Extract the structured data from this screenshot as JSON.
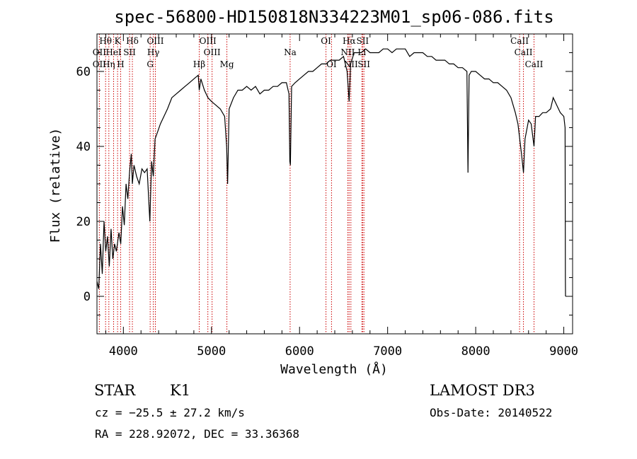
{
  "chart_data": {
    "type": "line",
    "title": "spec-56800-HD150818N334223M01_sp06-086.fits",
    "xlabel": "Wavelength (Å)",
    "ylabel": "Flux (relative)",
    "xlim": [
      3700,
      9100
    ],
    "ylim": [
      -10,
      70
    ],
    "xticks": [
      4000,
      5000,
      6000,
      7000,
      8000,
      9000
    ],
    "yticks": [
      0,
      20,
      40,
      60
    ],
    "grid": false,
    "series": [
      {
        "points": [
          [
            3700,
            4
          ],
          [
            3720,
            2
          ],
          [
            3740,
            14
          ],
          [
            3760,
            6
          ],
          [
            3780,
            20
          ],
          [
            3800,
            12
          ],
          [
            3820,
            16
          ],
          [
            3840,
            8
          ],
          [
            3860,
            18
          ],
          [
            3880,
            10
          ],
          [
            3900,
            14
          ],
          [
            3920,
            12
          ],
          [
            3950,
            17
          ],
          [
            3970,
            14
          ],
          [
            3990,
            24
          ],
          [
            4010,
            19
          ],
          [
            4030,
            30
          ],
          [
            4050,
            26
          ],
          [
            4070,
            33
          ],
          [
            4090,
            38
          ],
          [
            4102,
            30
          ],
          [
            4120,
            35
          ],
          [
            4150,
            32
          ],
          [
            4180,
            30
          ],
          [
            4210,
            34
          ],
          [
            4240,
            33
          ],
          [
            4270,
            34
          ],
          [
            4300,
            20
          ],
          [
            4320,
            36
          ],
          [
            4340,
            32
          ],
          [
            4360,
            42
          ],
          [
            4390,
            44
          ],
          [
            4420,
            46
          ],
          [
            4460,
            48
          ],
          [
            4500,
            50
          ],
          [
            4550,
            53
          ],
          [
            4600,
            54
          ],
          [
            4650,
            55
          ],
          [
            4700,
            56
          ],
          [
            4750,
            57
          ],
          [
            4800,
            58
          ],
          [
            4850,
            59
          ],
          [
            4861,
            55
          ],
          [
            4880,
            58
          ],
          [
            4920,
            55
          ],
          [
            4960,
            53
          ],
          [
            5000,
            52
          ],
          [
            5050,
            51
          ],
          [
            5100,
            50
          ],
          [
            5150,
            48
          ],
          [
            5172,
            40
          ],
          [
            5183,
            30
          ],
          [
            5200,
            50
          ],
          [
            5250,
            53
          ],
          [
            5300,
            55
          ],
          [
            5350,
            55
          ],
          [
            5400,
            56
          ],
          [
            5450,
            55
          ],
          [
            5500,
            56
          ],
          [
            5550,
            54
          ],
          [
            5600,
            55
          ],
          [
            5650,
            55
          ],
          [
            5700,
            56
          ],
          [
            5750,
            56
          ],
          [
            5800,
            57
          ],
          [
            5850,
            57
          ],
          [
            5880,
            54
          ],
          [
            5890,
            36
          ],
          [
            5896,
            35
          ],
          [
            5910,
            56
          ],
          [
            5950,
            57
          ],
          [
            6000,
            58
          ],
          [
            6050,
            59
          ],
          [
            6100,
            60
          ],
          [
            6150,
            60
          ],
          [
            6200,
            61
          ],
          [
            6250,
            62
          ],
          [
            6300,
            62
          ],
          [
            6350,
            63
          ],
          [
            6400,
            63
          ],
          [
            6450,
            63
          ],
          [
            6500,
            64
          ],
          [
            6540,
            60
          ],
          [
            6563,
            52
          ],
          [
            6580,
            62
          ],
          [
            6620,
            65
          ],
          [
            6650,
            65
          ],
          [
            6700,
            65
          ],
          [
            6750,
            66
          ],
          [
            6800,
            65
          ],
          [
            6850,
            65
          ],
          [
            6900,
            65
          ],
          [
            6950,
            66
          ],
          [
            7000,
            66
          ],
          [
            7050,
            65
          ],
          [
            7100,
            66
          ],
          [
            7150,
            66
          ],
          [
            7200,
            66
          ],
          [
            7250,
            64
          ],
          [
            7300,
            65
          ],
          [
            7350,
            65
          ],
          [
            7400,
            65
          ],
          [
            7450,
            64
          ],
          [
            7500,
            64
          ],
          [
            7550,
            63
          ],
          [
            7600,
            63
          ],
          [
            7650,
            63
          ],
          [
            7700,
            62
          ],
          [
            7750,
            62
          ],
          [
            7800,
            61
          ],
          [
            7850,
            61
          ],
          [
            7900,
            60
          ],
          [
            7912,
            33
          ],
          [
            7925,
            59
          ],
          [
            7950,
            60
          ],
          [
            8000,
            60
          ],
          [
            8050,
            59
          ],
          [
            8100,
            58
          ],
          [
            8150,
            58
          ],
          [
            8200,
            57
          ],
          [
            8250,
            57
          ],
          [
            8300,
            56
          ],
          [
            8350,
            55
          ],
          [
            8400,
            53
          ],
          [
            8450,
            49
          ],
          [
            8480,
            46
          ],
          [
            8500,
            42
          ],
          [
            8520,
            38
          ],
          [
            8542,
            33
          ],
          [
            8560,
            42
          ],
          [
            8600,
            47
          ],
          [
            8630,
            46
          ],
          [
            8662,
            40
          ],
          [
            8680,
            48
          ],
          [
            8720,
            48
          ],
          [
            8760,
            49
          ],
          [
            8800,
            49
          ],
          [
            8850,
            50
          ],
          [
            8880,
            53
          ],
          [
            8920,
            51
          ],
          [
            8960,
            49
          ],
          [
            9000,
            48
          ],
          [
            9015,
            45
          ],
          [
            9018,
            5
          ],
          [
            9020,
            0
          ]
        ]
      }
    ],
    "annotations": [
      {
        "label": "Hθ",
        "x": 3798,
        "row": 1
      },
      {
        "label": "K",
        "x": 3934,
        "row": 1
      },
      {
        "label": "Hδ",
        "x": 4102,
        "row": 1
      },
      {
        "label": "OII",
        "x": 3727,
        "row": 2
      },
      {
        "label": "HeI",
        "x": 3889,
        "row": 2
      },
      {
        "label": "SII",
        "x": 4070,
        "row": 2
      },
      {
        "label": "OII",
        "x": 3727,
        "row": 3
      },
      {
        "label": "Hη",
        "x": 3835,
        "row": 3
      },
      {
        "label": "H",
        "x": 3969,
        "row": 3
      },
      {
        "label": "OIII",
        "x": 4363,
        "row": 1
      },
      {
        "label": "Hγ",
        "x": 4340,
        "row": 2
      },
      {
        "label": "G",
        "x": 4304,
        "row": 3
      },
      {
        "label": "OIII",
        "x": 4959,
        "row": 1
      },
      {
        "label": "OIII",
        "x": 5007,
        "row": 2
      },
      {
        "label": "Hβ",
        "x": 4861,
        "row": 3
      },
      {
        "label": "Mg",
        "x": 5175,
        "row": 3
      },
      {
        "label": "Na",
        "x": 5893,
        "row": 2
      },
      {
        "label": "OI",
        "x": 6300,
        "row": 1
      },
      {
        "label": "OI",
        "x": 6363,
        "row": 3
      },
      {
        "label": "Hα",
        "x": 6563,
        "row": 1
      },
      {
        "label": "SII",
        "x": 6716,
        "row": 1
      },
      {
        "label": "NII",
        "x": 6548,
        "row": 2
      },
      {
        "label": "Li",
        "x": 6708,
        "row": 2
      },
      {
        "label": "NII",
        "x": 6583,
        "row": 3
      },
      {
        "label": "SII",
        "x": 6731,
        "row": 3
      },
      {
        "label": "CaII",
        "x": 8498,
        "row": 1
      },
      {
        "label": "CaII",
        "x": 8542,
        "row": 2
      },
      {
        "label": "CaII",
        "x": 8662,
        "row": 3
      }
    ],
    "line_markers": [
      3727,
      3798,
      3835,
      3889,
      3934,
      3969,
      4070,
      4102,
      4304,
      4340,
      4363,
      4861,
      4959,
      5007,
      5175,
      5893,
      6300,
      6363,
      6548,
      6563,
      6583,
      6708,
      6716,
      6731,
      8498,
      8542,
      8662
    ],
    "line_color": "#000000",
    "marker_color": "#cc0000"
  },
  "info": {
    "class": "STAR",
    "subclass": "K1",
    "survey": "LAMOST DR3",
    "cz": "cz = −25.5 ± 27.2 km/s",
    "obs_date": "Obs-Date: 20140522",
    "radec": "RA = 228.92072, DEC =  33.36368"
  }
}
